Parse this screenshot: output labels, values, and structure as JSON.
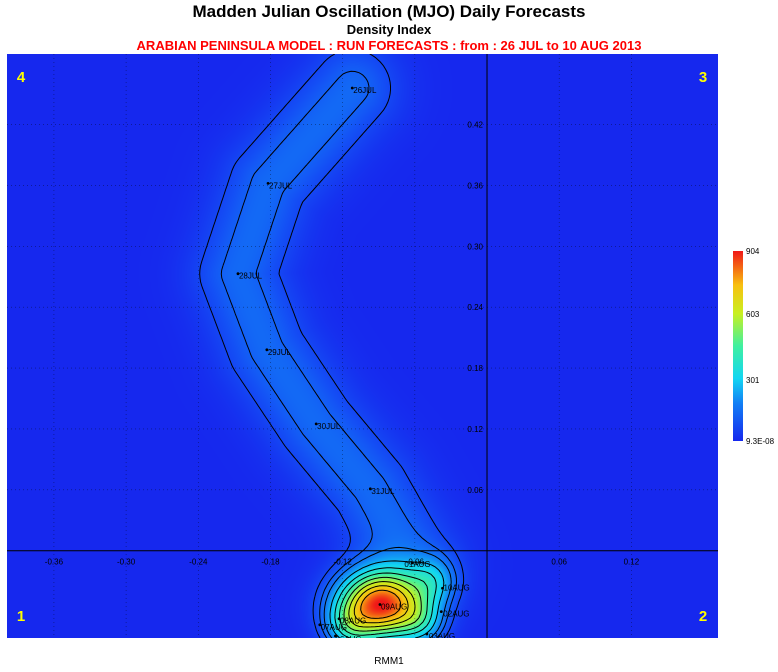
{
  "titles": {
    "main": "Madden Julian Oscillation (MJO) Daily Forecasts",
    "sub": "Density Index",
    "model": "ARABIAN PENINSULA MODEL : RUN FORECASTS : from : 26 JUL to 10 AUG 2013"
  },
  "chart_data": {
    "type": "heatmap",
    "title": "Madden Julian Oscillation (MJO) Daily Forecasts",
    "subtitle": "Density Index",
    "xlabel": "RMM1",
    "ylabel": "",
    "xlim": [
      -0.399,
      0.192
    ],
    "ylim": [
      -0.086,
      0.4895
    ],
    "x_ticks": [
      -0.36,
      -0.3,
      -0.24,
      -0.18,
      -0.12,
      -0.06,
      0.06,
      0.12
    ],
    "x_tick_labels": [
      "-0.36",
      "-0.30",
      "-0.24",
      "-0.18",
      "-0.12",
      "-0.06",
      "0.06",
      "0.12"
    ],
    "y_ticks": [
      0.42,
      0.36,
      0.3,
      0.24,
      0.18,
      0.12,
      0.06
    ],
    "y_tick_labels": [
      "0.42",
      "0.36",
      "0.30",
      "0.24",
      "0.18",
      "0.12",
      "0.06"
    ],
    "phases": [
      "1",
      "2",
      "3",
      "4"
    ],
    "colorbar": {
      "min_label": "9.3E-08",
      "labels": [
        "904",
        "603",
        "301",
        "9.3E-08"
      ],
      "min": 0,
      "max": 904
    },
    "grid": true,
    "track": [
      {
        "label": "26JUL",
        "x": -0.112,
        "y": 0.456
      },
      {
        "label": "27JUL",
        "x": -0.182,
        "y": 0.362
      },
      {
        "label": "28JUL",
        "x": -0.207,
        "y": 0.273
      },
      {
        "label": "29JUL",
        "x": -0.183,
        "y": 0.198
      },
      {
        "label": "30JUL",
        "x": -0.142,
        "y": 0.125
      },
      {
        "label": "31JUL",
        "x": -0.097,
        "y": 0.061
      },
      {
        "label": "01AUG",
        "x": -0.062,
        "y": -0.012
      },
      {
        "label": "10AUG",
        "x": -0.037,
        "y": -0.037
      },
      {
        "label": "02AUG",
        "x": -0.038,
        "y": -0.06
      },
      {
        "label": "03AUG",
        "x": -0.05,
        "y": -0.082
      },
      {
        "label": "04AUG",
        "x": -0.061,
        "y": -0.095
      },
      {
        "label": "05AUG",
        "x": -0.094,
        "y": -0.092
      },
      {
        "label": "06AUG",
        "x": -0.126,
        "y": -0.084
      },
      {
        "label": "07AUG",
        "x": -0.139,
        "y": -0.073
      },
      {
        "label": "08AUG",
        "x": -0.123,
        "y": -0.067
      },
      {
        "label": "09AUG",
        "x": -0.089,
        "y": -0.053
      }
    ]
  }
}
